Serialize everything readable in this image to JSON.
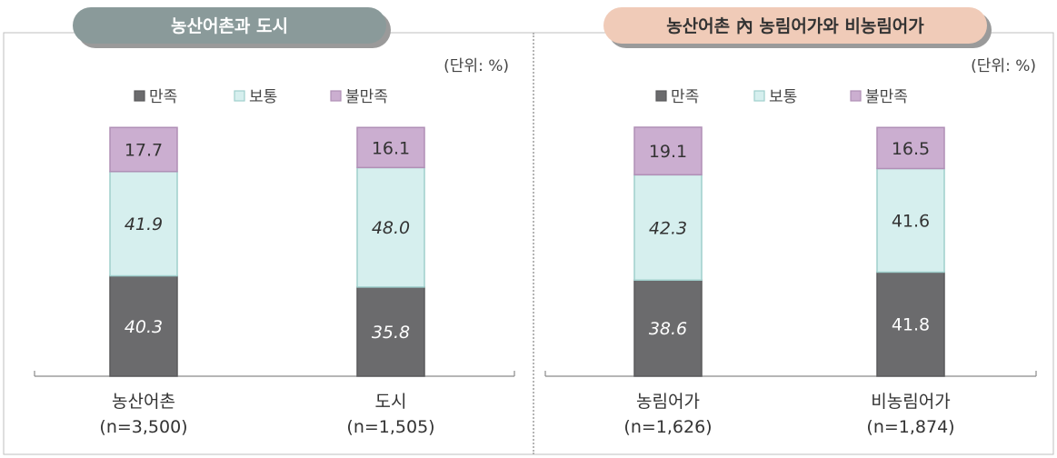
{
  "chart_data": [
    {
      "type": "bar",
      "stacked": true,
      "title": "농산어촌과 도시",
      "unit_label": "(단위: %)",
      "legend": [
        "만족",
        "보통",
        "불만족"
      ],
      "legend_position": "top",
      "categories": [
        "농산어촌",
        "도시"
      ],
      "category_notes": [
        "(n=3,500)",
        "(n=1,505)"
      ],
      "series": [
        {
          "name": "만족",
          "values": [
            40.3,
            35.8
          ]
        },
        {
          "name": "보통",
          "values": [
            41.9,
            48.0
          ]
        },
        {
          "name": "불만족",
          "values": [
            17.7,
            16.1
          ]
        }
      ],
      "value_labels": [
        [
          "40.3",
          "35.8"
        ],
        [
          "41.9",
          "48.0"
        ],
        [
          "17.7",
          "16.1"
        ]
      ],
      "ylim": [
        0,
        100
      ],
      "grid": false
    },
    {
      "type": "bar",
      "stacked": true,
      "title": "농산어촌 內 농림어가와 비농림어가",
      "unit_label": "(단위: %)",
      "legend": [
        "만족",
        "보통",
        "불만족"
      ],
      "legend_position": "top",
      "categories": [
        "농림어가",
        "비농림어가"
      ],
      "category_notes": [
        "(n=1,626)",
        "(n=1,874)"
      ],
      "series": [
        {
          "name": "만족",
          "values": [
            38.6,
            41.8
          ]
        },
        {
          "name": "보통",
          "values": [
            42.3,
            41.6
          ]
        },
        {
          "name": "불만족",
          "values": [
            19.1,
            16.5
          ]
        }
      ],
      "value_labels": [
        [
          "38.6",
          "41.8"
        ],
        [
          "42.3",
          "41.6"
        ],
        [
          "19.1",
          "16.5"
        ]
      ],
      "ylim": [
        0,
        100
      ],
      "grid": false
    }
  ],
  "colors": {
    "satisfied": "#6b6b6d",
    "neutral": "#d6efee",
    "dissatisfied": "#cbaed0",
    "title_pill_left": "#8a9a9a",
    "title_pill_right": "#f0cbb8"
  }
}
